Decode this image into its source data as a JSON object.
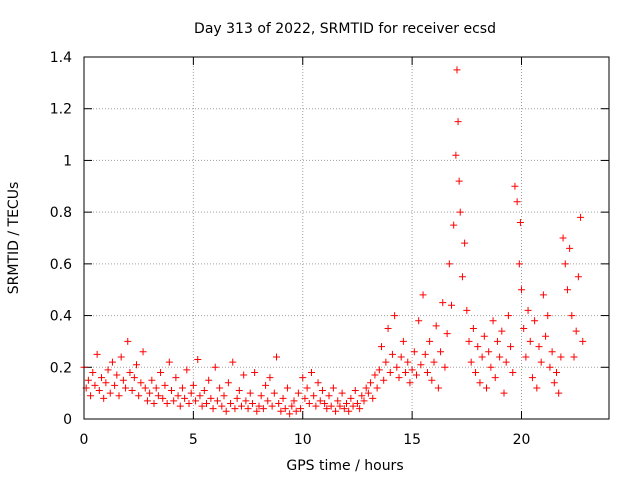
{
  "chart_data": {
    "type": "scatter",
    "title": "Day 313 of 2022, SRMTID for receiver ecsd",
    "xlabel": "GPS time / hours",
    "ylabel": "SRMTID / TECUs",
    "xlim": [
      0,
      24
    ],
    "ylim": [
      0,
      1.4
    ],
    "xticks": [
      0,
      5,
      10,
      15,
      20
    ],
    "xtick_labels": [
      "0",
      "5",
      "10",
      "15",
      "20"
    ],
    "yticks": [
      0,
      0.2,
      0.4,
      0.6,
      0.8,
      1,
      1.2,
      1.4
    ],
    "ytick_labels": [
      "0",
      "0.2",
      "0.4",
      "0.6",
      "0.8",
      "1",
      "1.2",
      "1.4"
    ],
    "grid": true,
    "marker": "+",
    "color": "#ff0000",
    "series": [
      {
        "name": "SRMTID",
        "x": [
          0.0,
          0.1,
          0.2,
          0.3,
          0.4,
          0.5,
          0.6,
          0.7,
          0.8,
          0.9,
          1.0,
          1.1,
          1.2,
          1.3,
          1.4,
          1.5,
          1.6,
          1.7,
          1.8,
          1.9,
          2.0,
          2.1,
          2.2,
          2.3,
          2.4,
          2.5,
          2.6,
          2.7,
          2.8,
          2.9,
          3.0,
          3.1,
          3.2,
          3.3,
          3.4,
          3.5,
          3.6,
          3.7,
          3.8,
          3.9,
          4.0,
          4.1,
          4.2,
          4.3,
          4.4,
          4.5,
          4.6,
          4.7,
          4.8,
          4.9,
          5.0,
          5.1,
          5.2,
          5.3,
          5.4,
          5.5,
          5.6,
          5.7,
          5.8,
          5.9,
          6.0,
          6.1,
          6.2,
          6.3,
          6.4,
          6.5,
          6.6,
          6.7,
          6.8,
          6.9,
          7.0,
          7.1,
          7.2,
          7.3,
          7.4,
          7.5,
          7.6,
          7.7,
          7.8,
          7.9,
          8.0,
          8.1,
          8.2,
          8.3,
          8.4,
          8.5,
          8.6,
          8.7,
          8.8,
          8.9,
          9.0,
          9.1,
          9.2,
          9.3,
          9.4,
          9.5,
          9.6,
          9.7,
          9.8,
          9.9,
          10.0,
          10.1,
          10.2,
          10.3,
          10.4,
          10.5,
          10.6,
          10.7,
          10.8,
          10.9,
          11.0,
          11.1,
          11.2,
          11.3,
          11.4,
          11.5,
          11.6,
          11.7,
          11.8,
          11.9,
          12.0,
          12.1,
          12.2,
          12.3,
          12.4,
          12.5,
          12.6,
          12.7,
          12.8,
          12.9,
          13.0,
          13.1,
          13.2,
          13.3,
          13.4,
          13.5,
          13.6,
          13.7,
          13.8,
          13.9,
          14.0,
          14.1,
          14.2,
          14.3,
          14.4,
          14.5,
          14.6,
          14.7,
          14.8,
          14.9,
          15.0,
          15.1,
          15.2,
          15.3,
          15.4,
          15.5,
          15.6,
          15.7,
          15.8,
          15.9,
          16.0,
          16.1,
          16.2,
          16.3,
          16.4,
          16.5,
          16.6,
          16.7,
          16.8,
          16.9,
          17.0,
          17.05,
          17.1,
          17.15,
          17.2,
          17.3,
          17.4,
          17.5,
          17.6,
          17.7,
          17.8,
          17.9,
          18.0,
          18.1,
          18.2,
          18.3,
          18.4,
          18.5,
          18.6,
          18.7,
          18.8,
          18.9,
          19.0,
          19.1,
          19.2,
          19.3,
          19.4,
          19.5,
          19.6,
          19.7,
          19.8,
          19.9,
          19.95,
          20.0,
          20.1,
          20.2,
          20.3,
          20.4,
          20.5,
          20.6,
          20.7,
          20.8,
          20.9,
          21.0,
          21.1,
          21.2,
          21.3,
          21.4,
          21.5,
          21.6,
          21.7,
          21.8,
          21.9,
          22.0,
          22.1,
          22.2,
          22.3,
          22.4,
          22.5,
          22.6,
          22.7,
          22.8
        ],
        "y": [
          0.2,
          0.12,
          0.15,
          0.09,
          0.18,
          0.13,
          0.25,
          0.11,
          0.16,
          0.08,
          0.14,
          0.19,
          0.1,
          0.22,
          0.13,
          0.17,
          0.09,
          0.24,
          0.15,
          0.12,
          0.3,
          0.18,
          0.11,
          0.16,
          0.21,
          0.09,
          0.14,
          0.26,
          0.12,
          0.07,
          0.1,
          0.15,
          0.06,
          0.12,
          0.09,
          0.18,
          0.08,
          0.13,
          0.06,
          0.22,
          0.11,
          0.07,
          0.16,
          0.09,
          0.05,
          0.12,
          0.08,
          0.19,
          0.06,
          0.1,
          0.13,
          0.07,
          0.23,
          0.09,
          0.05,
          0.11,
          0.06,
          0.15,
          0.08,
          0.04,
          0.2,
          0.07,
          0.12,
          0.05,
          0.09,
          0.03,
          0.14,
          0.06,
          0.22,
          0.04,
          0.08,
          0.11,
          0.05,
          0.17,
          0.07,
          0.04,
          0.1,
          0.06,
          0.18,
          0.03,
          0.05,
          0.09,
          0.04,
          0.13,
          0.07,
          0.16,
          0.05,
          0.1,
          0.24,
          0.06,
          0.03,
          0.08,
          0.04,
          0.12,
          0.02,
          0.05,
          0.07,
          0.03,
          0.1,
          0.04,
          0.16,
          0.08,
          0.12,
          0.06,
          0.18,
          0.09,
          0.05,
          0.14,
          0.07,
          0.11,
          0.06,
          0.04,
          0.09,
          0.05,
          0.12,
          0.03,
          0.07,
          0.05,
          0.1,
          0.04,
          0.06,
          0.03,
          0.08,
          0.05,
          0.11,
          0.06,
          0.04,
          0.09,
          0.07,
          0.12,
          0.1,
          0.14,
          0.08,
          0.17,
          0.12,
          0.19,
          0.28,
          0.15,
          0.22,
          0.35,
          0.18,
          0.25,
          0.4,
          0.2,
          0.16,
          0.24,
          0.3,
          0.18,
          0.22,
          0.14,
          0.19,
          0.26,
          0.17,
          0.38,
          0.21,
          0.48,
          0.25,
          0.18,
          0.3,
          0.15,
          0.22,
          0.36,
          0.12,
          0.26,
          0.45,
          0.2,
          0.33,
          0.6,
          0.44,
          0.75,
          1.02,
          1.35,
          1.15,
          0.92,
          0.8,
          0.55,
          0.68,
          0.42,
          0.3,
          0.22,
          0.35,
          0.18,
          0.28,
          0.14,
          0.24,
          0.32,
          0.12,
          0.26,
          0.2,
          0.38,
          0.16,
          0.3,
          0.24,
          0.34,
          0.1,
          0.22,
          0.4,
          0.28,
          0.18,
          0.9,
          0.84,
          0.6,
          0.76,
          0.5,
          0.35,
          0.24,
          0.42,
          0.3,
          0.16,
          0.38,
          0.12,
          0.28,
          0.22,
          0.48,
          0.32,
          0.4,
          0.2,
          0.26,
          0.14,
          0.18,
          0.1,
          0.24,
          0.7,
          0.6,
          0.5,
          0.66,
          0.4,
          0.24,
          0.34,
          0.55,
          0.78,
          0.3
        ]
      }
    ]
  }
}
